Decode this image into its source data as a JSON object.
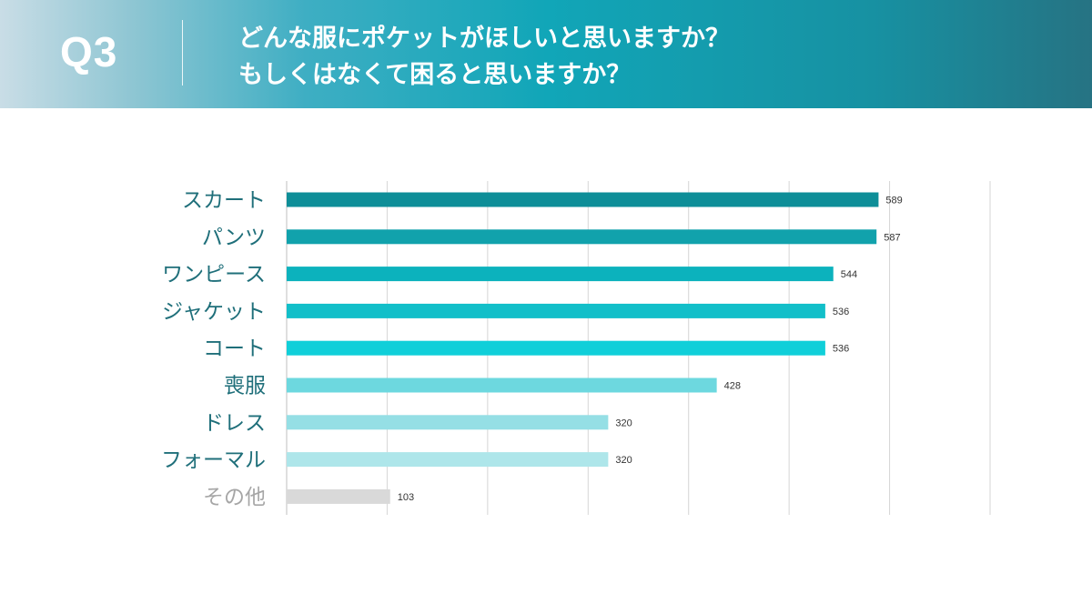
{
  "header": {
    "q_label": "Q3",
    "title_line_1": "どんな服にポケットがほしいと思いますか？",
    "title_line_2": "もしくはなくて困ると思いますか？"
  },
  "chart_data": {
    "type": "bar",
    "orientation": "horizontal",
    "categories": [
      "スカート",
      "パンツ",
      "ワンピース",
      "ジャケット",
      "コート",
      "喪服",
      "ドレス",
      "フォーマル",
      "その他"
    ],
    "values": [
      589,
      587,
      544,
      536,
      536,
      428,
      320,
      320,
      103
    ],
    "bar_colors": [
      "#0e8e98",
      "#11a2ac",
      "#0cb2bd",
      "#12bfc9",
      "#10cfd9",
      "#6dd8df",
      "#95dfe5",
      "#aee6ea",
      "#d9d9d9"
    ],
    "label_colors": [
      "#1f6f7a",
      "#1f6f7a",
      "#1f6f7a",
      "#1f6f7a",
      "#1f6f7a",
      "#1f6f7a",
      "#1f6f7a",
      "#1f6f7a",
      "#a6a6a6"
    ],
    "title": "",
    "xlabel": "",
    "ylabel": "",
    "xlim": [
      0,
      700
    ],
    "gridlines": [
      0,
      100,
      200,
      300,
      400,
      500,
      600,
      700
    ],
    "grid": true,
    "data_labels": true,
    "axis_tick_labels": false
  }
}
